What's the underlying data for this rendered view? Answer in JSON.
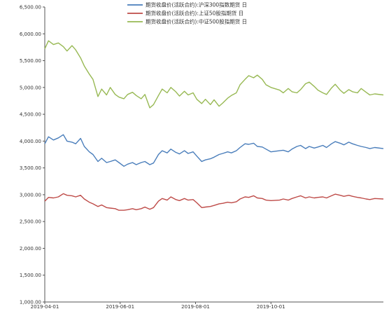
{
  "chart_data": {
    "type": "line",
    "title": "",
    "xlabel": "",
    "ylabel": "",
    "ylim": [
      1000,
      6500
    ],
    "yticks": [
      1000,
      1500,
      2000,
      2500,
      3000,
      3500,
      4000,
      4500,
      5000,
      5500,
      6000,
      6500
    ],
    "ytick_labels": [
      "1,000.00",
      "1,500.00",
      "2,000.00",
      "2,500.00",
      "3,000.00",
      "3,500.00",
      "4,000.00",
      "4,500.00",
      "5,000.00",
      "5,500.00",
      "6,000.00",
      "6,500.00"
    ],
    "xlim": [
      "2019-04-01",
      "2019-12-31"
    ],
    "xticks": [
      "2019-04-01",
      "2019-06-01",
      "2019-08-01",
      "2019-10-01"
    ],
    "xtick_labels": [
      "2019-04-01",
      "2019-06-01",
      "2019-08-01",
      "2019-10-01"
    ],
    "grid": false,
    "legend_position": "top-center",
    "series": [
      {
        "name": "期货收盘价(活跃合约):沪深300指数期货 日",
        "color": "#4a7ebb",
        "points": [
          [
            "2019-04-01",
            3950
          ],
          [
            "2019-04-04",
            4080
          ],
          [
            "2019-04-08",
            4020
          ],
          [
            "2019-04-12",
            4060
          ],
          [
            "2019-04-16",
            4120
          ],
          [
            "2019-04-19",
            4000
          ],
          [
            "2019-04-23",
            3980
          ],
          [
            "2019-04-26",
            3950
          ],
          [
            "2019-04-30",
            4050
          ],
          [
            "2019-05-03",
            3900
          ],
          [
            "2019-05-07",
            3800
          ],
          [
            "2019-05-10",
            3750
          ],
          [
            "2019-05-14",
            3620
          ],
          [
            "2019-05-17",
            3680
          ],
          [
            "2019-05-21",
            3600
          ],
          [
            "2019-05-24",
            3620
          ],
          [
            "2019-05-28",
            3650
          ],
          [
            "2019-05-31",
            3600
          ],
          [
            "2019-06-04",
            3530
          ],
          [
            "2019-06-07",
            3570
          ],
          [
            "2019-06-11",
            3600
          ],
          [
            "2019-06-14",
            3560
          ],
          [
            "2019-06-18",
            3600
          ],
          [
            "2019-06-21",
            3620
          ],
          [
            "2019-06-25",
            3560
          ],
          [
            "2019-06-28",
            3590
          ],
          [
            "2019-07-02",
            3750
          ],
          [
            "2019-07-05",
            3820
          ],
          [
            "2019-07-09",
            3780
          ],
          [
            "2019-07-12",
            3850
          ],
          [
            "2019-07-16",
            3790
          ],
          [
            "2019-07-19",
            3760
          ],
          [
            "2019-07-23",
            3820
          ],
          [
            "2019-07-26",
            3770
          ],
          [
            "2019-07-30",
            3800
          ],
          [
            "2019-08-02",
            3720
          ],
          [
            "2019-08-06",
            3620
          ],
          [
            "2019-08-09",
            3650
          ],
          [
            "2019-08-13",
            3670
          ],
          [
            "2019-08-16",
            3700
          ],
          [
            "2019-08-20",
            3750
          ],
          [
            "2019-08-23",
            3770
          ],
          [
            "2019-08-27",
            3800
          ],
          [
            "2019-08-30",
            3780
          ],
          [
            "2019-09-03",
            3820
          ],
          [
            "2019-09-06",
            3880
          ],
          [
            "2019-09-10",
            3950
          ],
          [
            "2019-09-13",
            3940
          ],
          [
            "2019-09-17",
            3960
          ],
          [
            "2019-09-20",
            3900
          ],
          [
            "2019-09-24",
            3890
          ],
          [
            "2019-09-27",
            3850
          ],
          [
            "2019-10-01",
            3800
          ],
          [
            "2019-10-08",
            3820
          ],
          [
            "2019-10-11",
            3830
          ],
          [
            "2019-10-15",
            3800
          ],
          [
            "2019-10-18",
            3850
          ],
          [
            "2019-10-22",
            3900
          ],
          [
            "2019-10-25",
            3920
          ],
          [
            "2019-10-29",
            3860
          ],
          [
            "2019-11-01",
            3900
          ],
          [
            "2019-11-05",
            3870
          ],
          [
            "2019-11-08",
            3890
          ],
          [
            "2019-11-12",
            3920
          ],
          [
            "2019-11-15",
            3880
          ],
          [
            "2019-11-19",
            3950
          ],
          [
            "2019-11-22",
            3990
          ],
          [
            "2019-11-26",
            3960
          ],
          [
            "2019-11-29",
            3930
          ],
          [
            "2019-12-03",
            3980
          ],
          [
            "2019-12-06",
            3950
          ],
          [
            "2019-12-10",
            3920
          ],
          [
            "2019-12-13",
            3900
          ],
          [
            "2019-12-17",
            3880
          ],
          [
            "2019-12-20",
            3860
          ],
          [
            "2019-12-24",
            3880
          ],
          [
            "2019-12-31",
            3860
          ]
        ]
      },
      {
        "name": "期货收盘价(活跃合约):上证50股指期货 日",
        "color": "#be4b48",
        "points": [
          [
            "2019-04-01",
            2880
          ],
          [
            "2019-04-04",
            2950
          ],
          [
            "2019-04-08",
            2940
          ],
          [
            "2019-04-12",
            2960
          ],
          [
            "2019-04-16",
            3020
          ],
          [
            "2019-04-19",
            2990
          ],
          [
            "2019-04-23",
            2980
          ],
          [
            "2019-04-26",
            2960
          ],
          [
            "2019-04-30",
            2990
          ],
          [
            "2019-05-03",
            2920
          ],
          [
            "2019-05-07",
            2860
          ],
          [
            "2019-05-10",
            2830
          ],
          [
            "2019-05-14",
            2780
          ],
          [
            "2019-05-17",
            2810
          ],
          [
            "2019-05-21",
            2760
          ],
          [
            "2019-05-24",
            2750
          ],
          [
            "2019-05-28",
            2740
          ],
          [
            "2019-05-31",
            2710
          ],
          [
            "2019-06-04",
            2710
          ],
          [
            "2019-06-07",
            2720
          ],
          [
            "2019-06-11",
            2740
          ],
          [
            "2019-06-14",
            2720
          ],
          [
            "2019-06-18",
            2740
          ],
          [
            "2019-06-21",
            2770
          ],
          [
            "2019-06-25",
            2730
          ],
          [
            "2019-06-28",
            2760
          ],
          [
            "2019-07-02",
            2880
          ],
          [
            "2019-07-05",
            2930
          ],
          [
            "2019-07-09",
            2900
          ],
          [
            "2019-07-12",
            2960
          ],
          [
            "2019-07-16",
            2910
          ],
          [
            "2019-07-19",
            2890
          ],
          [
            "2019-07-23",
            2930
          ],
          [
            "2019-07-26",
            2900
          ],
          [
            "2019-07-30",
            2910
          ],
          [
            "2019-08-02",
            2850
          ],
          [
            "2019-08-06",
            2760
          ],
          [
            "2019-08-09",
            2770
          ],
          [
            "2019-08-13",
            2780
          ],
          [
            "2019-08-16",
            2800
          ],
          [
            "2019-08-20",
            2830
          ],
          [
            "2019-08-23",
            2840
          ],
          [
            "2019-08-27",
            2860
          ],
          [
            "2019-08-30",
            2850
          ],
          [
            "2019-09-03",
            2870
          ],
          [
            "2019-09-06",
            2920
          ],
          [
            "2019-09-10",
            2960
          ],
          [
            "2019-09-13",
            2950
          ],
          [
            "2019-09-17",
            2980
          ],
          [
            "2019-09-20",
            2940
          ],
          [
            "2019-09-24",
            2930
          ],
          [
            "2019-09-27",
            2900
          ],
          [
            "2019-10-01",
            2890
          ],
          [
            "2019-10-08",
            2900
          ],
          [
            "2019-10-11",
            2920
          ],
          [
            "2019-10-15",
            2900
          ],
          [
            "2019-10-18",
            2930
          ],
          [
            "2019-10-22",
            2960
          ],
          [
            "2019-10-25",
            2980
          ],
          [
            "2019-10-29",
            2940
          ],
          [
            "2019-11-01",
            2960
          ],
          [
            "2019-11-05",
            2940
          ],
          [
            "2019-11-08",
            2950
          ],
          [
            "2019-11-12",
            2960
          ],
          [
            "2019-11-15",
            2940
          ],
          [
            "2019-11-19",
            2980
          ],
          [
            "2019-11-22",
            3010
          ],
          [
            "2019-11-26",
            2990
          ],
          [
            "2019-11-29",
            2970
          ],
          [
            "2019-12-03",
            2990
          ],
          [
            "2019-12-06",
            2970
          ],
          [
            "2019-12-10",
            2950
          ],
          [
            "2019-12-13",
            2940
          ],
          [
            "2019-12-17",
            2920
          ],
          [
            "2019-12-20",
            2910
          ],
          [
            "2019-12-24",
            2930
          ],
          [
            "2019-12-31",
            2920
          ]
        ]
      },
      {
        "name": "期货收盘价(活跃合约):中证500股指期货 日",
        "color": "#98b954",
        "points": [
          [
            "2019-04-01",
            5720
          ],
          [
            "2019-04-04",
            5870
          ],
          [
            "2019-04-08",
            5800
          ],
          [
            "2019-04-12",
            5830
          ],
          [
            "2019-04-16",
            5760
          ],
          [
            "2019-04-19",
            5680
          ],
          [
            "2019-04-23",
            5780
          ],
          [
            "2019-04-26",
            5700
          ],
          [
            "2019-04-30",
            5550
          ],
          [
            "2019-05-03",
            5400
          ],
          [
            "2019-05-07",
            5250
          ],
          [
            "2019-05-10",
            5150
          ],
          [
            "2019-05-14",
            4830
          ],
          [
            "2019-05-17",
            4970
          ],
          [
            "2019-05-21",
            4860
          ],
          [
            "2019-05-24",
            5000
          ],
          [
            "2019-05-28",
            4870
          ],
          [
            "2019-05-31",
            4820
          ],
          [
            "2019-06-04",
            4790
          ],
          [
            "2019-06-07",
            4870
          ],
          [
            "2019-06-11",
            4910
          ],
          [
            "2019-06-14",
            4850
          ],
          [
            "2019-06-18",
            4790
          ],
          [
            "2019-06-21",
            4870
          ],
          [
            "2019-06-25",
            4620
          ],
          [
            "2019-06-28",
            4680
          ],
          [
            "2019-07-02",
            4850
          ],
          [
            "2019-07-05",
            4970
          ],
          [
            "2019-07-09",
            4900
          ],
          [
            "2019-07-12",
            5000
          ],
          [
            "2019-07-16",
            4920
          ],
          [
            "2019-07-19",
            4840
          ],
          [
            "2019-07-23",
            4930
          ],
          [
            "2019-07-26",
            4860
          ],
          [
            "2019-07-30",
            4900
          ],
          [
            "2019-08-02",
            4780
          ],
          [
            "2019-08-06",
            4700
          ],
          [
            "2019-08-09",
            4780
          ],
          [
            "2019-08-13",
            4680
          ],
          [
            "2019-08-16",
            4770
          ],
          [
            "2019-08-20",
            4650
          ],
          [
            "2019-08-23",
            4710
          ],
          [
            "2019-08-27",
            4800
          ],
          [
            "2019-08-30",
            4850
          ],
          [
            "2019-09-03",
            4900
          ],
          [
            "2019-09-06",
            5050
          ],
          [
            "2019-09-10",
            5150
          ],
          [
            "2019-09-13",
            5220
          ],
          [
            "2019-09-17",
            5180
          ],
          [
            "2019-09-20",
            5230
          ],
          [
            "2019-09-24",
            5150
          ],
          [
            "2019-09-27",
            5050
          ],
          [
            "2019-10-01",
            5000
          ],
          [
            "2019-10-08",
            4950
          ],
          [
            "2019-10-11",
            4900
          ],
          [
            "2019-10-15",
            4980
          ],
          [
            "2019-10-18",
            4920
          ],
          [
            "2019-10-22",
            4900
          ],
          [
            "2019-10-25",
            4960
          ],
          [
            "2019-10-29",
            5070
          ],
          [
            "2019-11-01",
            5100
          ],
          [
            "2019-11-05",
            5020
          ],
          [
            "2019-11-08",
            4950
          ],
          [
            "2019-11-12",
            4900
          ],
          [
            "2019-11-15",
            4870
          ],
          [
            "2019-11-19",
            4990
          ],
          [
            "2019-11-22",
            5060
          ],
          [
            "2019-11-26",
            4950
          ],
          [
            "2019-11-29",
            4890
          ],
          [
            "2019-12-03",
            4960
          ],
          [
            "2019-12-06",
            4920
          ],
          [
            "2019-12-10",
            4900
          ],
          [
            "2019-12-13",
            4980
          ],
          [
            "2019-12-17",
            4910
          ],
          [
            "2019-12-20",
            4860
          ],
          [
            "2019-12-24",
            4880
          ],
          [
            "2019-12-31",
            4860
          ]
        ]
      }
    ]
  }
}
